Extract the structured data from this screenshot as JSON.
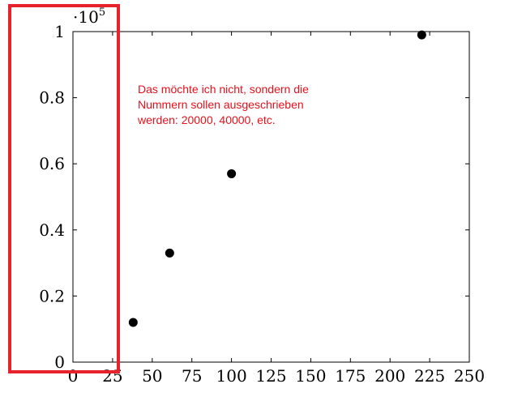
{
  "chart_data": {
    "type": "scatter",
    "x": [
      38,
      61,
      100,
      220
    ],
    "y": [
      12000,
      33000,
      57000,
      99000
    ],
    "xlim": [
      0,
      250
    ],
    "ylim": [
      0,
      100000
    ],
    "x_ticks": [
      0,
      25,
      50,
      75,
      100,
      125,
      150,
      175,
      200,
      225,
      250
    ],
    "y_ticks": [
      0,
      20000,
      40000,
      60000,
      80000,
      100000
    ],
    "y_tick_labels": [
      "0",
      "0.2",
      "0.4",
      "0.6",
      "0.8",
      "1"
    ],
    "y_scale_factor": {
      "base": "·10",
      "exponent": "5"
    },
    "marker_color": "#000000",
    "grid": false
  },
  "annotation": {
    "lines": [
      "Das möchte ich nicht, sondern die",
      "Nummern sollen ausgeschrieben",
      "werden: 20000, 40000, etc."
    ],
    "color": "#e8101b"
  },
  "highlight_box_color": "#e8222b"
}
